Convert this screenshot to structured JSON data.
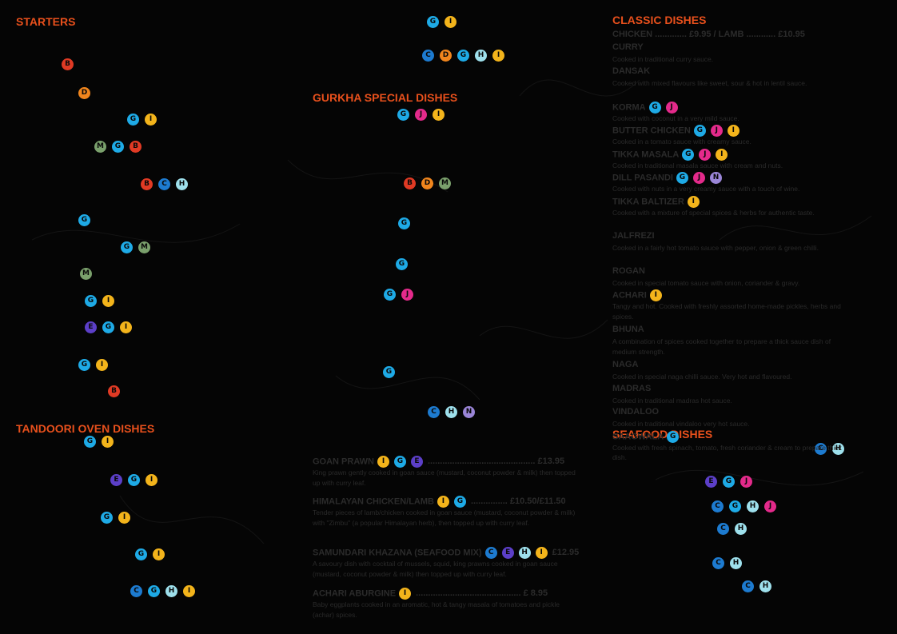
{
  "colors": {
    "background": "#050505",
    "heading": "#e8501c",
    "allergens": {
      "B": "#e03a24",
      "C": "#1d7bd0",
      "D": "#f0851d",
      "E": "#5c3fc8",
      "G": "#1eaae6",
      "H": "#9ee0ec",
      "I": "#f3b41b",
      "J": "#e42a8b",
      "M": "#7aa06c",
      "N": "#9b86d8"
    }
  },
  "headings": {
    "starters": "STARTERS",
    "tandoori": "TANDOORI OVEN DISHES",
    "gurkha": "GURKHA SPECIAL DISHES",
    "classic": "CLASSIC DISHES",
    "seafood": "SEAFOOD DISHES"
  },
  "classic": {
    "price_line": "CHICKEN ............. £9.95 / LAMB ............ £10.95",
    "items": [
      {
        "name": "CURRY",
        "desc": "Cooked in traditional curry sauce."
      },
      {
        "name": "DANSAK",
        "desc": "Cooked with mixed flavours like sweet, sour & hot in lentil sauce."
      },
      {
        "name": "KORMA",
        "desc": "Cooked with coconut in a very mild sauce."
      },
      {
        "name": "BUTTER CHICKEN",
        "desc": "Cooked in a tomato sauce with creamy sauce."
      },
      {
        "name": "TIKKA MASALA",
        "desc": "Cooked in traditional masala sauce with cream and nuts."
      },
      {
        "name": "DILL PASANDI",
        "desc": "Cooked with nuts in a very creamy sauce with a touch of wine."
      },
      {
        "name": "TIKKA BALTIZER",
        "desc": "Cooked with a mixture of special spices & herbs for authentic taste."
      },
      {
        "name": "JALFREZI",
        "desc": "Cooked in a fairly hot tomato sauce with pepper, onion & green chilli."
      },
      {
        "name": "ROGAN",
        "desc": "Cooked in special tomato sauce with onion, coriander & gravy."
      },
      {
        "name": "ACHARI",
        "desc": "Tangy and hot. Cooked with freshly assorted home-made pickles, herbs and spices."
      },
      {
        "name": "BHUNA",
        "desc": "A combination of spices cooked together to prepare a thick sauce dish of medium strength."
      },
      {
        "name": "NAGA",
        "desc": "Cooked in special naga chilli sauce. Very hot and flavoured."
      },
      {
        "name": "MADRAS",
        "desc": "Cooked in traditional madras hot sauce."
      },
      {
        "name": "VINDALOO",
        "desc": "Cooked in traditional vindaloo very hot sauce."
      },
      {
        "name": "SAAGWALA",
        "desc": "Cooked with fresh spinach, tomato, fresh coriander & cream to prepare thick dish."
      }
    ]
  },
  "specials": [
    {
      "name": "GOAN PRAWN",
      "price": "............................................ £13.95",
      "desc": "King prawn gently cooked in goan sauce (mustard, coconut powder & milk) then topped up with curry leaf."
    },
    {
      "name": "HIMALAYAN CHICKEN/LAMB",
      "price": "............... £10.50/£11.50",
      "desc": "Tender pieces of lamb/chicken cooked in goan sauce (mustard, coconut powder & milk) with \"Zimbu\" (a popular Himalayan herb), then topped up with curry leaf."
    },
    {
      "name": "SAMUNDARI KHAZANA (SEAFOOD MIX)",
      "price": "£12.95",
      "desc": "A savoury dish with cocktail of mussels, squid, king prawns cooked in goan sauce (mustard, coconut powder & milk) then topped up with curry leaf."
    },
    {
      "name": "ACHARI ABURGINE",
      "price": "........................................... £ 8.95",
      "desc": "Baby eggplants cooked in an aromatic, hot & tangy masala of tomatoes and pickle (achar) spices."
    }
  ],
  "allergen_groups": {
    "starters": [
      [
        "B"
      ],
      [
        "D"
      ],
      [
        "G",
        "I"
      ],
      [
        "M",
        "G",
        "B"
      ],
      [
        "B",
        "C",
        "H"
      ],
      [
        "G"
      ],
      [
        "G",
        "M"
      ],
      [
        "M"
      ],
      [
        "G",
        "I"
      ],
      [
        "E",
        "G",
        "I"
      ],
      [
        "G",
        "I"
      ],
      [
        "B"
      ]
    ],
    "tandoori": [
      [
        "G",
        "I"
      ],
      [
        "E",
        "G",
        "I"
      ],
      [
        "G",
        "I"
      ],
      [
        "G",
        "I"
      ],
      [
        "C",
        "G",
        "H",
        "I"
      ]
    ],
    "gurkha_top": [
      [
        "G",
        "I"
      ],
      [
        "C",
        "D",
        "G",
        "H",
        "I"
      ]
    ],
    "gurkha": [
      [
        "G",
        "J",
        "I"
      ],
      [
        "B",
        "D",
        "M"
      ],
      [
        "G"
      ],
      [
        "G"
      ],
      [
        "G",
        "J"
      ],
      [
        "G"
      ],
      [
        "C",
        "H",
        "N"
      ]
    ],
    "classic": {
      "KORMA": [
        "G",
        "J"
      ],
      "BUTTER CHICKEN": [
        "G",
        "J",
        "I"
      ],
      "TIKKA MASALA": [
        "G",
        "J",
        "I"
      ],
      "DILL PASANDI": [
        "G",
        "J",
        "N"
      ],
      "TIKKA BALTIZER": [
        "I"
      ],
      "ACHARI": [
        "I"
      ],
      "SAAGWALA": [
        "G"
      ]
    },
    "specials": [
      [
        "I",
        "G",
        "E"
      ],
      [
        "I",
        "G"
      ],
      [
        "C",
        "E",
        "H",
        "I"
      ],
      [
        "I"
      ]
    ],
    "seafood": [
      [
        "C",
        "H"
      ],
      [
        "E",
        "G",
        "J"
      ],
      [
        "C",
        "G",
        "H",
        "J"
      ],
      [
        "C",
        "H"
      ],
      [
        "C",
        "H"
      ],
      [
        "C",
        "H"
      ]
    ]
  }
}
